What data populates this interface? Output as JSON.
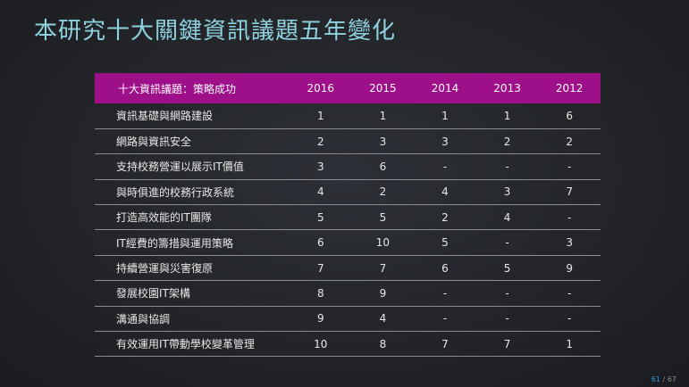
{
  "title": "本研究十大關鍵資訊議題五年變化",
  "table": {
    "header_label": "十大資訊議題：策略成功",
    "years": [
      "2016",
      "2015",
      "2014",
      "2013",
      "2012"
    ],
    "rows": [
      {
        "name": "資訊基礎與網路建設",
        "values": [
          "1",
          "1",
          "1",
          "1",
          "6"
        ]
      },
      {
        "name": "網路與資訊安全",
        "values": [
          "2",
          "3",
          "3",
          "2",
          "2"
        ]
      },
      {
        "name": "支持校務營運以展示IT價值",
        "values": [
          "3",
          "6",
          "-",
          "-",
          "-"
        ]
      },
      {
        "name": "與時俱進的校務行政系統",
        "values": [
          "4",
          "2",
          "4",
          "3",
          "7"
        ]
      },
      {
        "name": "打造高效能的IT團隊",
        "values": [
          "5",
          "5",
          "2",
          "4",
          "-"
        ]
      },
      {
        "name": "IT經費的籌措與運用策略",
        "values": [
          "6",
          "10",
          "5",
          "-",
          "3"
        ]
      },
      {
        "name": "持續營運與災害復原",
        "values": [
          "7",
          "7",
          "6",
          "5",
          "9"
        ]
      },
      {
        "name": "發展校園IT架構",
        "values": [
          "8",
          "9",
          "-",
          "-",
          "-"
        ]
      },
      {
        "name": "溝通與協調",
        "values": [
          "9",
          "4",
          "-",
          "-",
          "-"
        ]
      },
      {
        "name": "有效運用IT帶動學校變革管理",
        "values": [
          "10",
          "8",
          "7",
          "7",
          "1"
        ]
      }
    ]
  },
  "page": {
    "current": "61",
    "separator": " / ",
    "total": "67"
  },
  "colors": {
    "title": "#8ed2e0",
    "header_bg": "#9e0f8a",
    "page_current": "#2e9ad8"
  }
}
